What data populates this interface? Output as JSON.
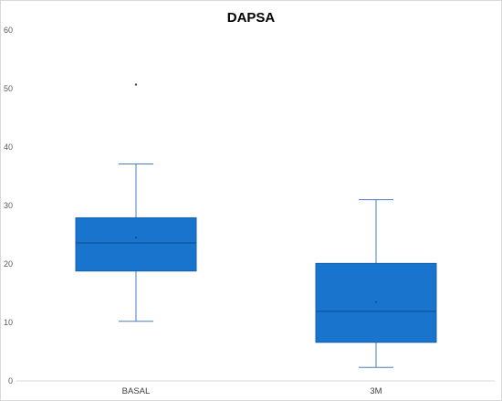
{
  "chart_data": {
    "type": "box",
    "title": "DAPSA",
    "xlabel": "",
    "ylabel": "",
    "ylim": [
      0,
      60
    ],
    "yticks": [
      "0",
      "10",
      "20",
      "30",
      "40",
      "50",
      "60"
    ],
    "grid": false,
    "legend": "none",
    "categories": [
      "BASAL",
      "3M"
    ],
    "boxes": [
      {
        "category": "BASAL",
        "min": 10.2,
        "q1": 18.8,
        "median": 23.6,
        "q3": 27.9,
        "max": 37.1,
        "mean": 24.5,
        "outliers": [
          50.7
        ]
      },
      {
        "category": "3M",
        "min": 2.3,
        "q1": 6.6,
        "median": 11.9,
        "q3": 20.1,
        "max": 31.0,
        "mean": 13.5,
        "outliers": []
      }
    ],
    "colors": {
      "box_fill": "#1874cd",
      "box_stroke": "#1461ab",
      "whisker": "#4a7ebb",
      "median": "#0f4c8a",
      "axis": "#d9d9d9"
    }
  }
}
